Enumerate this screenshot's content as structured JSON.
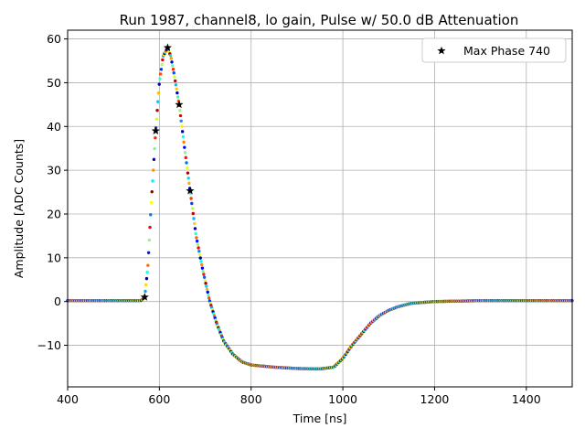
{
  "chart_data": {
    "type": "scatter",
    "title": "Run 1987, channel8, lo gain, Pulse w/ 50.0 dB Attenuation",
    "xlabel": "Time [ns]",
    "ylabel": "Amplitude [ADC Counts]",
    "xlim": [
      400,
      1500
    ],
    "ylim": [
      -19.5,
      62
    ],
    "xticks": [
      400,
      600,
      800,
      1000,
      1200,
      1400
    ],
    "yticks": [
      -10,
      0,
      10,
      20,
      30,
      40,
      50,
      60
    ],
    "grid": true,
    "legend": {
      "placement": "top-right",
      "entries": [
        "Max Phase 740"
      ]
    },
    "colormap": "jet",
    "series": [
      {
        "name": "Max Phase 740",
        "marker": "star",
        "color": "#000000",
        "points": [
          [
            568,
            1
          ],
          [
            592,
            39
          ],
          [
            618,
            58
          ],
          [
            643,
            45
          ],
          [
            667,
            25.3
          ]
        ]
      }
    ],
    "pulse_curve": {
      "description_points": [
        [
          400,
          0.2
        ],
        [
          560,
          0.2
        ],
        [
          568,
          1
        ],
        [
          575,
          8
        ],
        [
          582,
          22
        ],
        [
          592,
          39
        ],
        [
          600,
          50
        ],
        [
          608,
          56
        ],
        [
          618,
          58
        ],
        [
          625,
          56
        ],
        [
          632,
          52
        ],
        [
          643,
          45
        ],
        [
          655,
          35
        ],
        [
          667,
          25.3
        ],
        [
          680,
          15
        ],
        [
          695,
          7
        ],
        [
          710,
          0
        ],
        [
          725,
          -5
        ],
        [
          740,
          -9
        ],
        [
          760,
          -12
        ],
        [
          780,
          -13.8
        ],
        [
          800,
          -14.5
        ],
        [
          850,
          -15
        ],
        [
          900,
          -15.3
        ],
        [
          950,
          -15.4
        ],
        [
          980,
          -15
        ],
        [
          1000,
          -13
        ],
        [
          1020,
          -10
        ],
        [
          1040,
          -7.5
        ],
        [
          1060,
          -5
        ],
        [
          1080,
          -3.2
        ],
        [
          1100,
          -2
        ],
        [
          1120,
          -1.2
        ],
        [
          1150,
          -0.4
        ],
        [
          1200,
          0
        ],
        [
          1300,
          0.2
        ],
        [
          1500,
          0.2
        ]
      ]
    }
  }
}
